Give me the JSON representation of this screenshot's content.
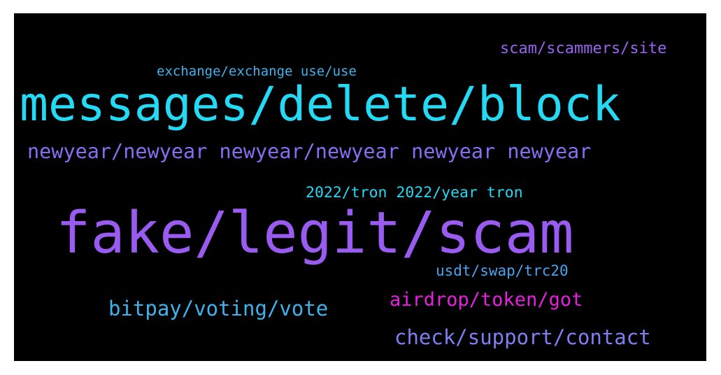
{
  "wordcloud": {
    "words": [
      {
        "text": "scam/scammers/site",
        "color": "#9a63f0"
      },
      {
        "text": "exchange/exchange use/use",
        "color": "#3fb2ee"
      },
      {
        "text": "messages/delete/block",
        "color": "#23d9f4"
      },
      {
        "text": "newyear/newyear newyear/newyear newyear newyear",
        "color": "#8a6cf2"
      },
      {
        "text": "2022/tron 2022/year tron",
        "color": "#23d9f4"
      },
      {
        "text": "fake/legit/scam",
        "color": "#9a5cf0"
      },
      {
        "text": "usdt/swap/trc20",
        "color": "#4aa4ec"
      },
      {
        "text": "airdrop/token/got",
        "color": "#e81fdf"
      },
      {
        "text": "bitpay/voting/vote",
        "color": "#3fb2ee"
      },
      {
        "text": "check/support/contact",
        "color": "#7e7ff0"
      }
    ]
  }
}
